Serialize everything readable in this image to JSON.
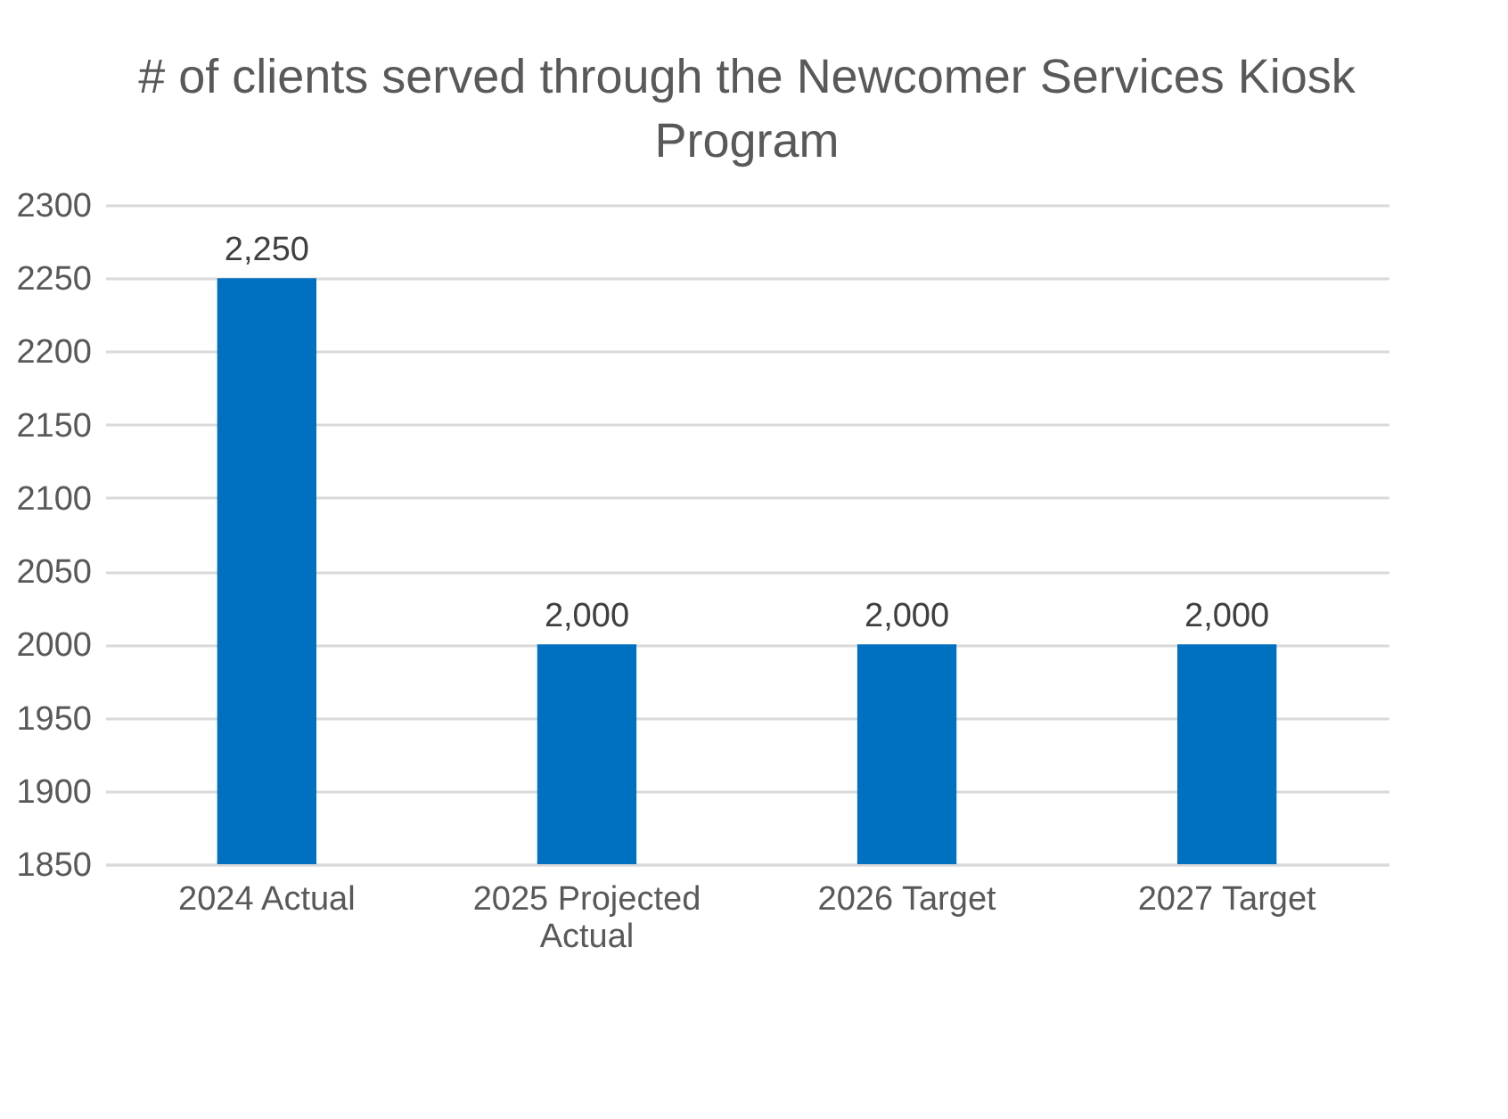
{
  "chart_data": {
    "type": "bar",
    "title": "# of clients served through the Newcomer Services Kiosk Program",
    "categories": [
      "2024 Actual",
      "2025 Projected Actual",
      "2026 Target",
      "2027 Target"
    ],
    "values": [
      2250,
      2000,
      2000,
      2000
    ],
    "color": "#0070c0",
    "value_labels": [
      "2,250",
      "2,000",
      "2,000",
      "2,000"
    ],
    "ylim": [
      1850,
      2300
    ],
    "yticks": [
      1850,
      1900,
      1950,
      2000,
      2050,
      2100,
      2150,
      2200,
      2250,
      2300
    ],
    "grid": "y"
  }
}
